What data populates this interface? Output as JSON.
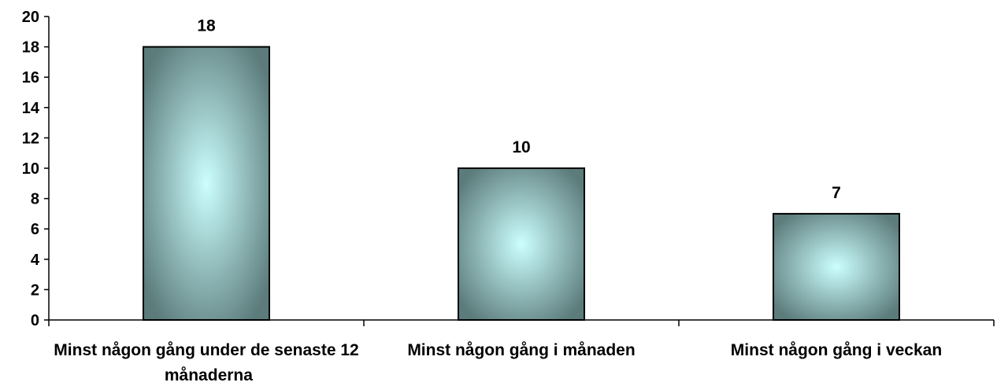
{
  "chart_data": {
    "type": "bar",
    "categories": [
      "Minst någon gång under de senaste 12 månaderna",
      "Minst någon gång i månaden",
      "Minst någon gång i veckan"
    ],
    "values": [
      18,
      10,
      7
    ],
    "gradient": [
      "#ccffff",
      "#5c7b7b"
    ],
    "ylim": [
      0,
      20
    ],
    "yticks": [
      0,
      2,
      4,
      6,
      8,
      10,
      12,
      14,
      16,
      18,
      20
    ],
    "grid": false
  }
}
